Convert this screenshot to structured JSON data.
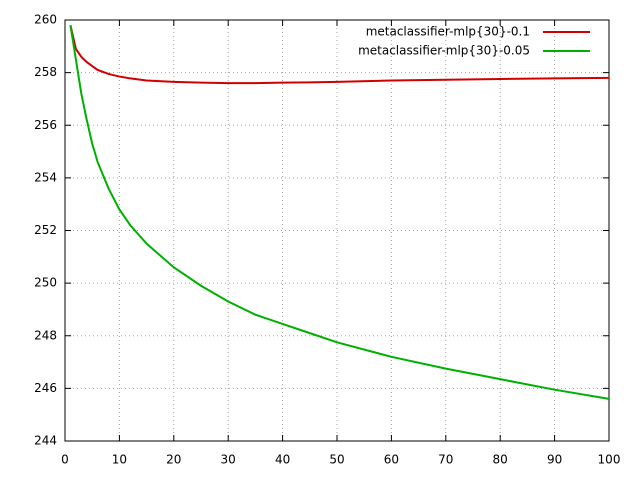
{
  "chart_data": {
    "type": "line",
    "x": [
      1,
      2,
      3,
      4,
      5,
      6,
      8,
      10,
      12,
      15,
      20,
      25,
      30,
      35,
      40,
      45,
      50,
      60,
      70,
      80,
      90,
      100
    ],
    "series": [
      {
        "name": "metaclassifier-mlp{30}-0.1",
        "color": "#d00000",
        "values": [
          259.8,
          258.9,
          258.6,
          258.4,
          258.25,
          258.1,
          257.95,
          257.85,
          257.78,
          257.7,
          257.65,
          257.62,
          257.6,
          257.6,
          257.62,
          257.63,
          257.65,
          257.7,
          257.73,
          257.76,
          257.78,
          257.8
        ]
      },
      {
        "name": "metaclassifier-mlp{30}-0.05",
        "color": "#00b000",
        "values": [
          259.8,
          258.5,
          257.2,
          256.2,
          255.3,
          254.6,
          253.6,
          252.8,
          252.2,
          251.5,
          250.6,
          249.9,
          249.3,
          248.8,
          248.45,
          248.1,
          247.75,
          247.2,
          246.75,
          246.35,
          245.95,
          245.6
        ]
      }
    ],
    "xlim": [
      0,
      100
    ],
    "xticks": [
      0,
      10,
      20,
      30,
      40,
      50,
      60,
      70,
      80,
      90,
      100
    ],
    "ylim": [
      244,
      260
    ],
    "yticks": [
      244,
      246,
      248,
      250,
      252,
      254,
      256,
      258,
      260
    ],
    "grid": true,
    "legend": "top-right"
  }
}
